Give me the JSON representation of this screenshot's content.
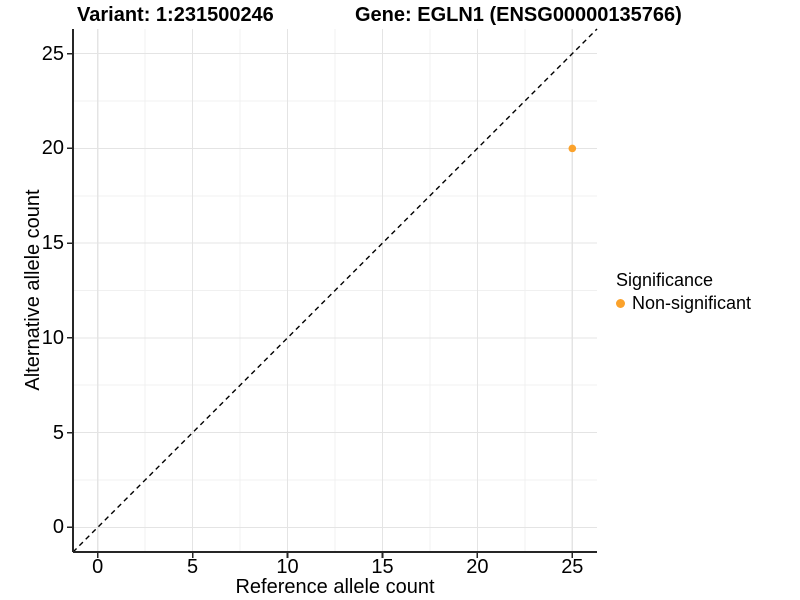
{
  "title": {
    "variant": "Variant: 1:231500246",
    "gene": "Gene: EGLN1 (ENSG00000135766)"
  },
  "chart_data": {
    "type": "scatter",
    "title_left": "Variant: 1:231500246",
    "title_right": "Gene: EGLN1 (ENSG00000135766)",
    "xlabel": "Reference allele count",
    "ylabel": "Alternative allele count",
    "xlim": [
      -1.3,
      26.3
    ],
    "ylim": [
      -1.3,
      26.3
    ],
    "x_ticks": [
      0,
      5,
      10,
      15,
      20,
      25
    ],
    "y_ticks": [
      0,
      5,
      10,
      15,
      20,
      25
    ],
    "x_minor_ticks": [
      2.5,
      7.5,
      12.5,
      17.5,
      22.5
    ],
    "y_minor_ticks": [
      2.5,
      7.5,
      12.5,
      17.5,
      22.5
    ],
    "grid": "major+minor",
    "identity_line": {
      "slope": 1,
      "intercept": 0,
      "style": "dashed",
      "color": "#000000"
    },
    "series": [
      {
        "name": "Non-significant",
        "color": "#FBA22B",
        "points": [
          {
            "x": 25,
            "y": 20
          }
        ]
      }
    ],
    "legend": {
      "title": "Significance",
      "position": "right",
      "items": [
        {
          "label": "Non-significant",
          "color": "#FBA22B"
        }
      ]
    },
    "style": {
      "grid_major_color": "#e4e4e4",
      "grid_minor_color": "#f0f0f0",
      "axis_color": "#262626",
      "text_color": "#000000",
      "background": "#ffffff"
    }
  }
}
